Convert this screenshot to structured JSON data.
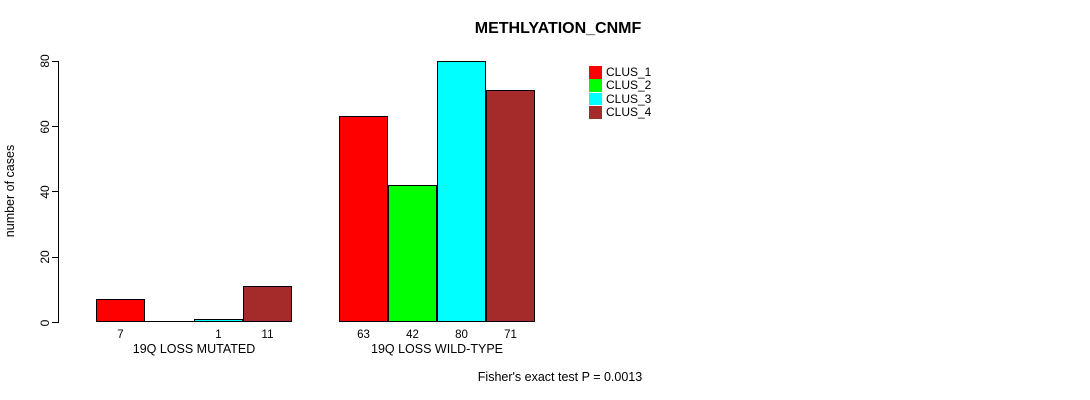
{
  "chart_data": {
    "type": "bar",
    "title": "METHLYATION_CNMF",
    "ylabel": "number of cases",
    "xlabel": "",
    "ylim": [
      0,
      80
    ],
    "yticks": [
      0,
      20,
      40,
      60,
      80
    ],
    "grid": false,
    "legend_position": "top-right",
    "categories": [
      "19Q LOSS MUTATED",
      "19Q LOSS WILD-TYPE"
    ],
    "series": [
      {
        "name": "CLUS_1",
        "color": "#ff0000",
        "values": [
          7,
          63
        ]
      },
      {
        "name": "CLUS_2",
        "color": "#00ff00",
        "values": [
          0,
          42
        ]
      },
      {
        "name": "CLUS_3",
        "color": "#00ffff",
        "values": [
          1,
          80
        ]
      },
      {
        "name": "CLUS_4",
        "color": "#a52a2a",
        "values": [
          11,
          71
        ]
      }
    ],
    "bar_value_labels": [
      [
        "7",
        "",
        "1",
        "11"
      ],
      [
        "63",
        "42",
        "80",
        "71"
      ]
    ],
    "footnote": "Fisher's exact test P = 0.0013"
  }
}
